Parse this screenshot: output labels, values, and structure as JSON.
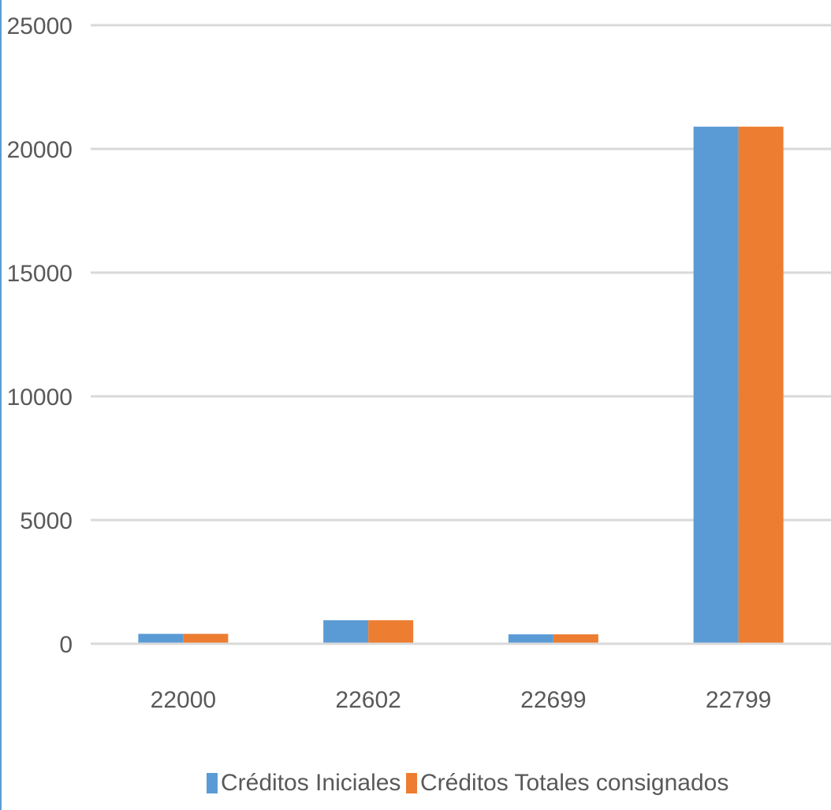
{
  "chart_data": {
    "type": "bar",
    "categories": [
      "22000",
      "22602",
      "22699",
      "22799"
    ],
    "series": [
      {
        "name": "Créditos Iniciales",
        "color": "#5b9bd5",
        "values": [
          400,
          950,
          380,
          20900
        ]
      },
      {
        "name": "Créditos Totales consignados",
        "color": "#ed7d31",
        "values": [
          400,
          950,
          380,
          20900
        ]
      }
    ],
    "ylim": [
      0,
      25000
    ],
    "yticks": [
      "0",
      "5000",
      "10000",
      "15000",
      "20000",
      "25000"
    ],
    "grid": true,
    "gridColor": "#d9d9d9",
    "legend": "bottom"
  }
}
